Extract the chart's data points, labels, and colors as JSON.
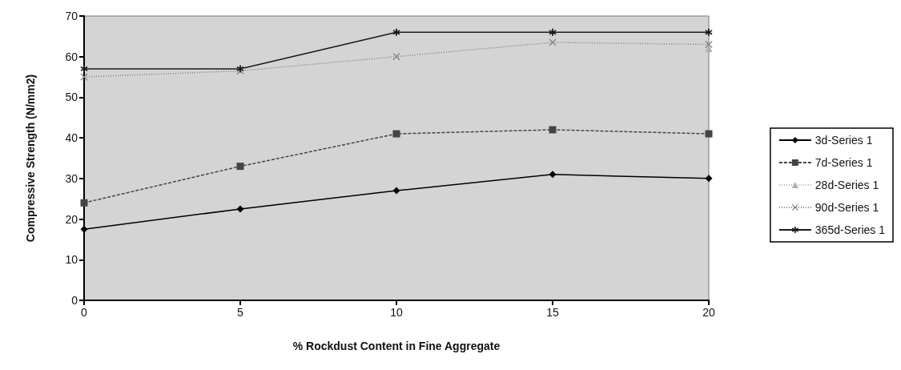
{
  "chart_data": {
    "type": "line",
    "xlabel": "% Rockdust Content in Fine Aggregate",
    "ylabel": "Compressive Strength (N/mm2)",
    "x": [
      0,
      5,
      10,
      15,
      20
    ],
    "xlim": [
      0,
      20
    ],
    "xticks": [
      0,
      5,
      10,
      15,
      20
    ],
    "ylim": [
      0,
      70
    ],
    "yticks": [
      0,
      10,
      20,
      30,
      40,
      50,
      60,
      70
    ],
    "grid": false,
    "legend": "right",
    "series": [
      {
        "name": "3d-Series 1",
        "color": "#000000",
        "marker": "diamond",
        "line_style": "solid",
        "values": [
          17.5,
          22.5,
          27,
          31,
          30
        ]
      },
      {
        "name": "7d-Series 1",
        "color": "#444444",
        "marker": "square",
        "line_style": "dashed",
        "values": [
          24,
          33,
          41,
          42,
          41
        ]
      },
      {
        "name": "28d-Series 1",
        "color": "#b0b0b0",
        "marker": "triangle",
        "line_style": "dotted",
        "values": [
          null,
          null,
          null,
          null,
          62
        ]
      },
      {
        "name": "90d-Series 1",
        "color": "#808080",
        "marker": "cross",
        "line_style": "dotted",
        "values": [
          55,
          56.5,
          60,
          63.5,
          63
        ]
      },
      {
        "name": "365d-Series 1",
        "color": "#1a1a1a",
        "marker": "star",
        "line_style": "solid",
        "values": [
          57,
          57,
          66,
          66,
          66
        ]
      }
    ]
  }
}
